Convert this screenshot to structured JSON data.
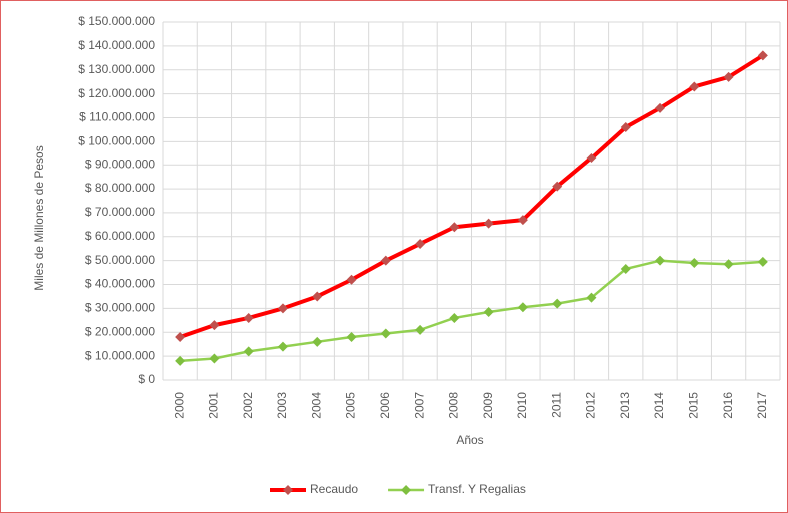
{
  "chart_data": {
    "type": "line",
    "y_label": "Miles de Millones de Pesos",
    "x_label": "Años",
    "categories": [
      "2000",
      "2001",
      "2002",
      "2003",
      "2004",
      "2005",
      "2006",
      "2007",
      "2008",
      "2009",
      "2010",
      "2011",
      "2012",
      "2013",
      "2014",
      "2015",
      "2016",
      "2017"
    ],
    "series": [
      {
        "name": "Recaudo",
        "color": "#ff0000",
        "marker_color": "#c0504d",
        "values": [
          18000000,
          23000000,
          26000000,
          30000000,
          35000000,
          42000000,
          50000000,
          57000000,
          64000000,
          65500000,
          67000000,
          81000000,
          93000000,
          106000000,
          114000000,
          123000000,
          127000000,
          136000000
        ]
      },
      {
        "name": "Transf. Y Regalias",
        "color": "#92d050",
        "marker_color": "#7fbf3f",
        "values": [
          8000000,
          9000000,
          12000000,
          14000000,
          16000000,
          18000000,
          19500000,
          21000000,
          26000000,
          28500000,
          30500000,
          32000000,
          34500000,
          46500000,
          50000000,
          49000000,
          48500000,
          49500000
        ]
      }
    ],
    "ylim": [
      0,
      150000000
    ],
    "yticks": [
      {
        "value": 0,
        "label": "$ 0"
      },
      {
        "value": 10000000,
        "label": "$ 10.000.000"
      },
      {
        "value": 20000000,
        "label": "$ 20.000.000"
      },
      {
        "value": 30000000,
        "label": "$ 30.000.000"
      },
      {
        "value": 40000000,
        "label": "$ 40.000.000"
      },
      {
        "value": 50000000,
        "label": "$ 50.000.000"
      },
      {
        "value": 60000000,
        "label": "$ 60.000.000"
      },
      {
        "value": 70000000,
        "label": "$ 70.000.000"
      },
      {
        "value": 80000000,
        "label": "$ 80.000.000"
      },
      {
        "value": 90000000,
        "label": "$ 90.000.000"
      },
      {
        "value": 100000000,
        "label": "$ 100.000.000"
      },
      {
        "value": 110000000,
        "label": "$ 110.000.000"
      },
      {
        "value": 120000000,
        "label": "$ 120.000.000"
      },
      {
        "value": 130000000,
        "label": "$ 130.000.000"
      },
      {
        "value": 140000000,
        "label": "$ 140.000.000"
      },
      {
        "value": 150000000,
        "label": "$ 150.000.000"
      }
    ],
    "grid": true,
    "legend": "bottom"
  }
}
